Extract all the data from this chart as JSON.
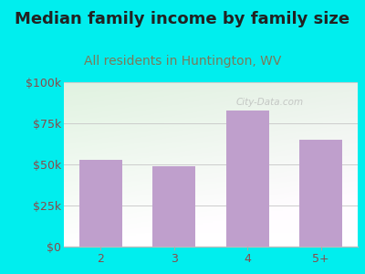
{
  "title": "Median family income by family size",
  "subtitle": "All residents in Huntington, WV",
  "categories": [
    "2",
    "3",
    "4",
    "5+"
  ],
  "values": [
    53000,
    49000,
    83000,
    65000
  ],
  "bar_color": "#bf9fcc",
  "title_color": "#222222",
  "subtitle_color": "#7a7a5a",
  "ylabel_color": "#8a4a4a",
  "xlabel_color": "#8a4a4a",
  "outer_bg": "#00eeee",
  "ylim": [
    0,
    100000
  ],
  "yticks": [
    0,
    25000,
    50000,
    75000,
    100000
  ],
  "ytick_labels": [
    "$0",
    "$25k",
    "$50k",
    "$75k",
    "$100k"
  ],
  "title_fontsize": 13,
  "subtitle_fontsize": 10,
  "tick_fontsize": 9,
  "watermark": "City-Data.com"
}
